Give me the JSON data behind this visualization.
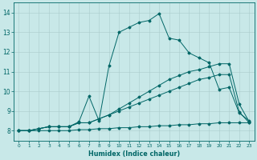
{
  "xlabel": "Humidex (Indice chaleur)",
  "bg_color": "#c8e8e8",
  "line_color": "#006666",
  "grid_color": "#aacccc",
  "xlim": [
    -0.5,
    23.5
  ],
  "ylim": [
    7.5,
    14.5
  ],
  "xticks": [
    0,
    1,
    2,
    3,
    4,
    5,
    6,
    7,
    8,
    9,
    10,
    11,
    12,
    13,
    14,
    15,
    16,
    17,
    18,
    19,
    20,
    21,
    22,
    23
  ],
  "yticks": [
    8,
    9,
    10,
    11,
    12,
    13,
    14
  ],
  "line1_x": [
    0,
    1,
    2,
    3,
    4,
    5,
    6,
    7,
    8,
    9,
    10,
    11,
    12,
    13,
    14,
    15,
    16,
    17,
    18,
    19,
    20,
    21,
    22,
    23
  ],
  "line1_y": [
    8.0,
    8.0,
    8.0,
    8.0,
    8.0,
    8.0,
    8.05,
    8.05,
    8.1,
    8.1,
    8.15,
    8.15,
    8.2,
    8.2,
    8.25,
    8.25,
    8.3,
    8.3,
    8.35,
    8.35,
    8.4,
    8.4,
    8.4,
    8.4
  ],
  "line2_x": [
    0,
    1,
    2,
    3,
    4,
    5,
    6,
    7,
    8,
    9,
    10,
    11,
    12,
    13,
    14,
    15,
    16,
    17,
    18,
    19,
    20,
    21,
    22,
    23
  ],
  "line2_y": [
    8.0,
    8.0,
    8.1,
    8.2,
    8.2,
    8.2,
    8.4,
    8.4,
    8.6,
    8.8,
    9.0,
    9.2,
    9.4,
    9.6,
    9.8,
    10.0,
    10.2,
    10.4,
    10.6,
    10.7,
    10.85,
    10.85,
    8.95,
    8.4
  ],
  "line3_x": [
    0,
    1,
    2,
    3,
    4,
    5,
    6,
    7,
    8,
    9,
    10,
    11,
    12,
    13,
    14,
    15,
    16,
    17,
    18,
    19,
    20,
    21,
    22,
    23
  ],
  "line3_y": [
    8.0,
    8.0,
    8.1,
    8.2,
    8.2,
    8.2,
    8.4,
    8.4,
    8.6,
    8.8,
    9.1,
    9.4,
    9.7,
    10.0,
    10.3,
    10.6,
    10.8,
    11.0,
    11.1,
    11.25,
    11.4,
    11.4,
    9.35,
    8.45
  ],
  "line4_x": [
    0,
    1,
    2,
    3,
    4,
    5,
    6,
    7,
    8,
    9,
    10,
    11,
    12,
    13,
    14,
    15,
    16,
    17,
    18,
    19,
    20,
    21,
    22,
    23
  ],
  "line4_y": [
    8.0,
    8.0,
    8.1,
    8.2,
    8.2,
    8.2,
    8.45,
    9.75,
    8.5,
    11.3,
    13.0,
    13.25,
    13.5,
    13.6,
    13.95,
    12.7,
    12.6,
    11.95,
    11.7,
    11.45,
    10.1,
    10.2,
    8.9,
    8.5
  ]
}
